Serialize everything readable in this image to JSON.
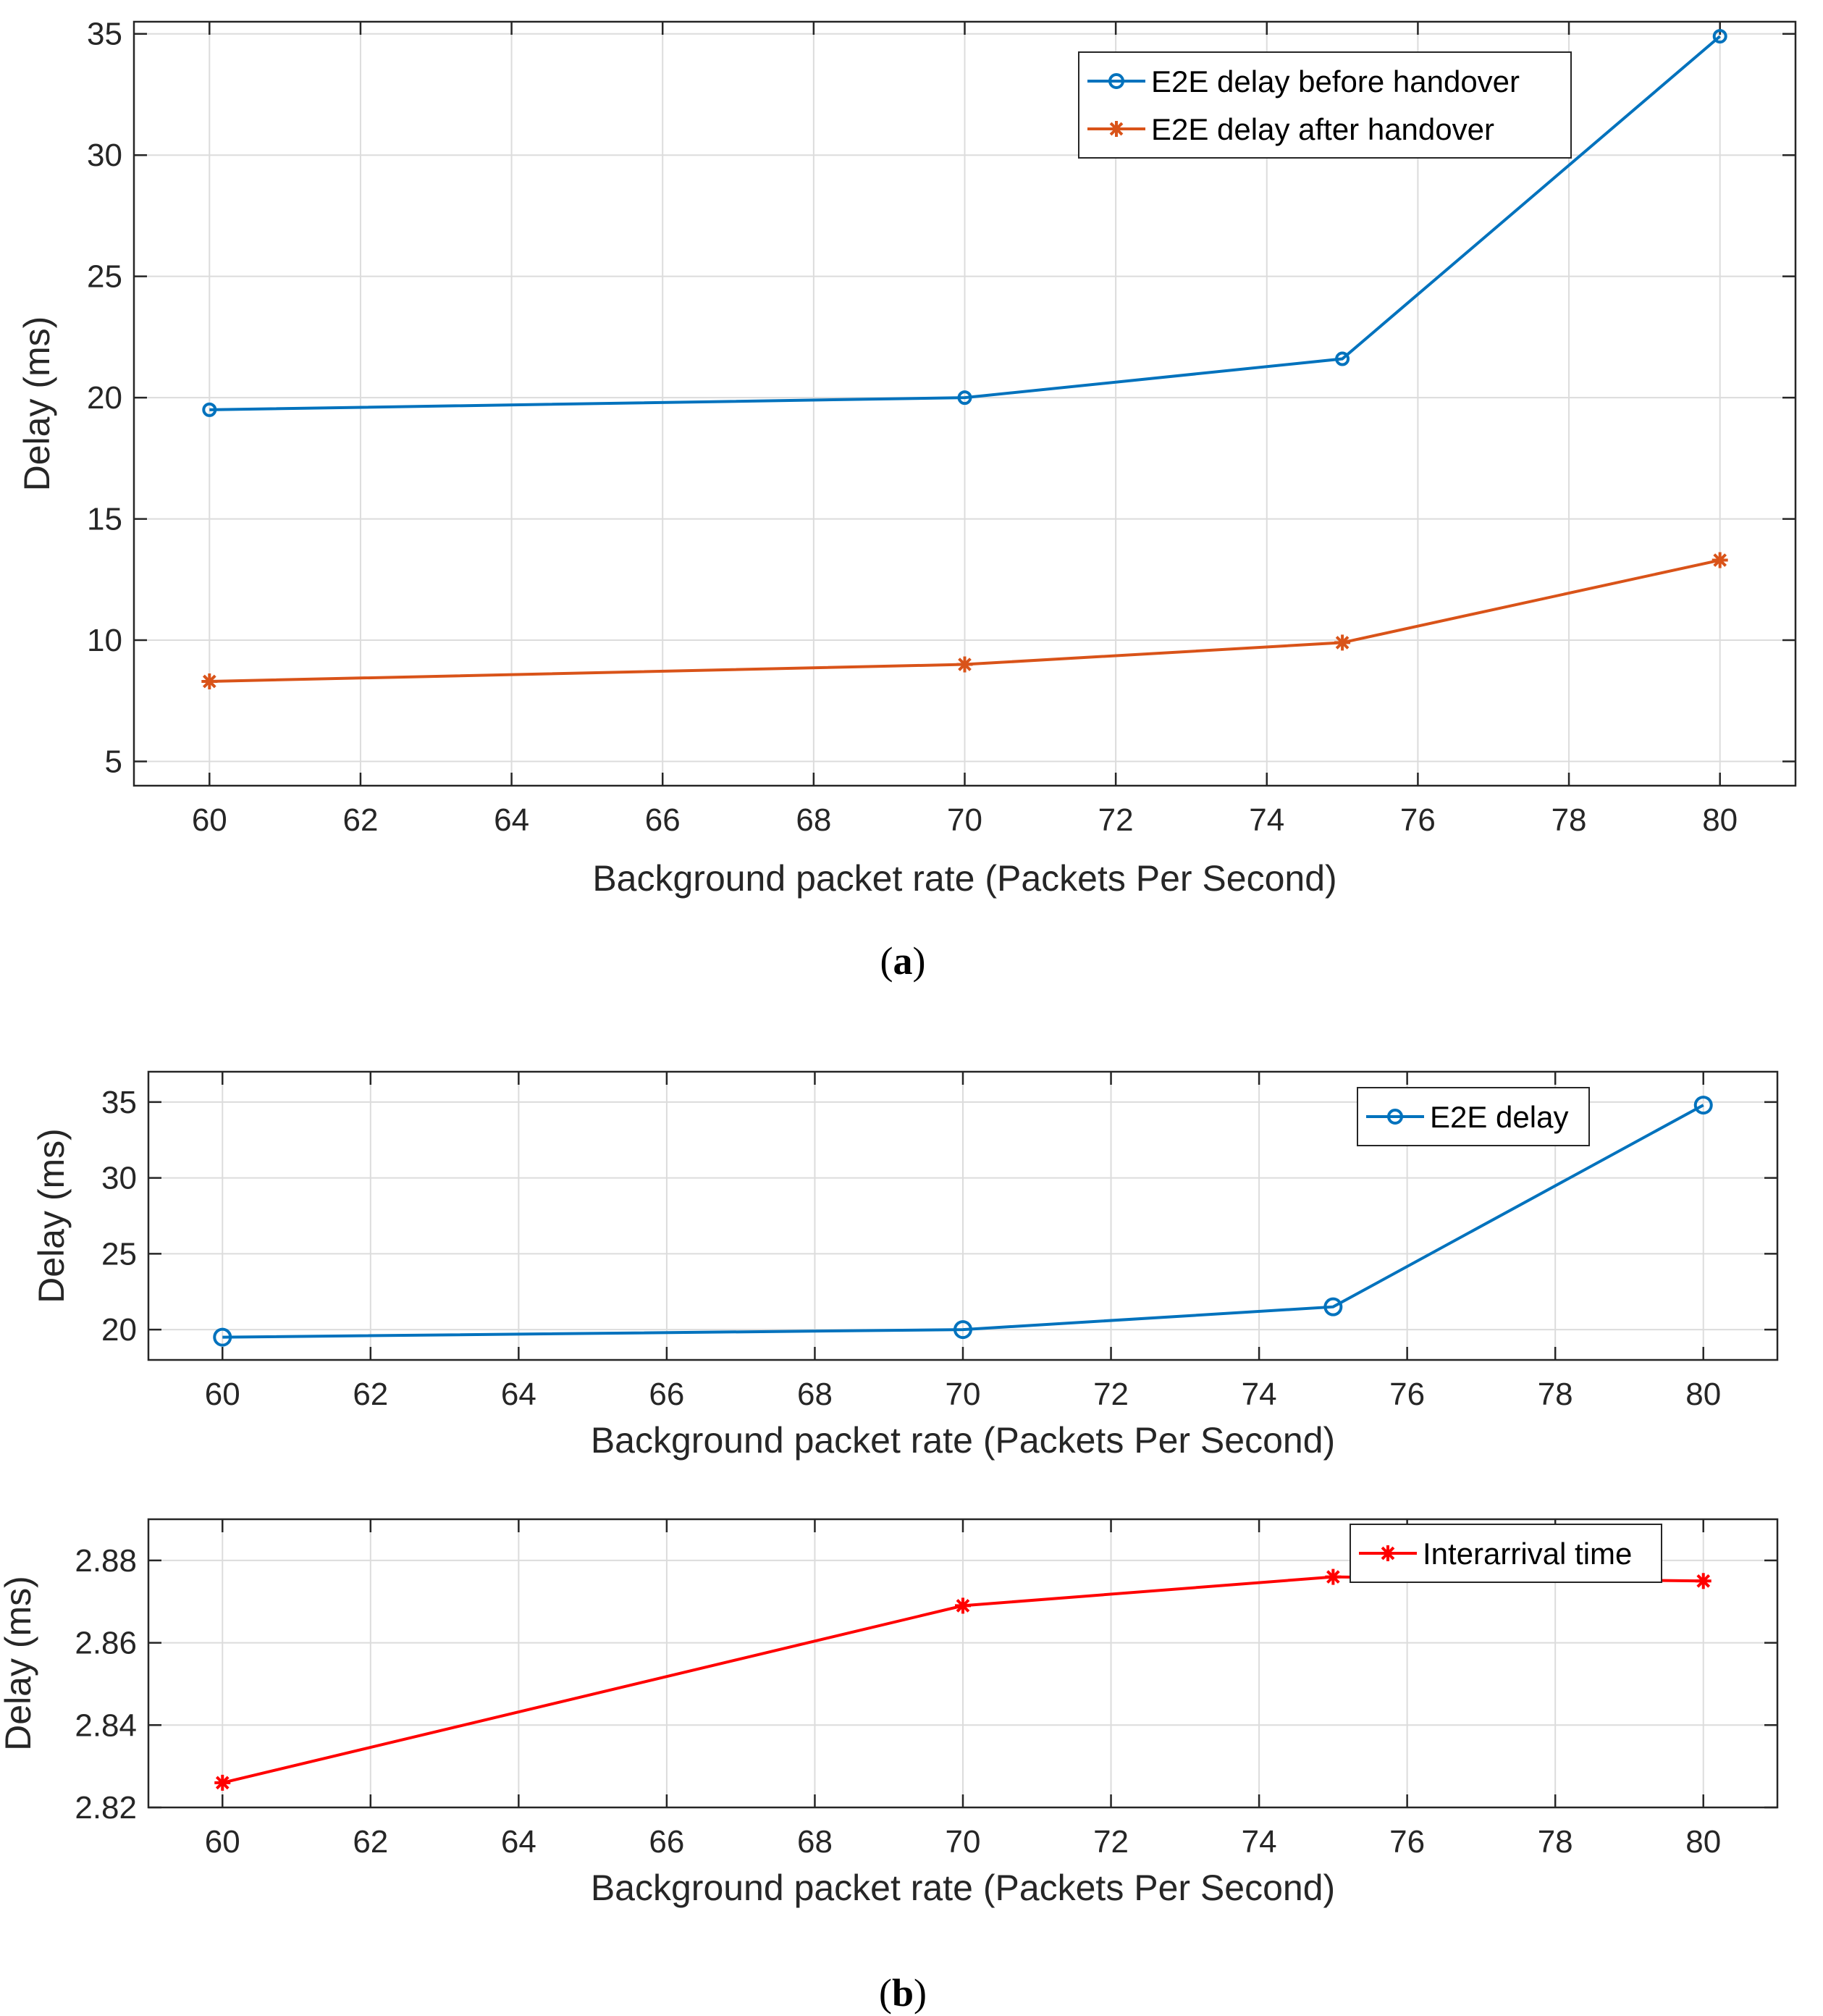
{
  "captions": {
    "a": "a",
    "b": "b"
  },
  "chart_data": [
    {
      "id": "a",
      "type": "line",
      "xlabel": "Background packet rate (Packets Per Second)",
      "ylabel": "Delay (ms)",
      "xlim": [
        59,
        81
      ],
      "ylim": [
        4,
        35.5
      ],
      "xticks": [
        60,
        62,
        64,
        66,
        68,
        70,
        72,
        74,
        76,
        78,
        80
      ],
      "yticks": [
        5,
        10,
        15,
        20,
        25,
        30,
        35
      ],
      "grid": true,
      "legend_position": "top-right",
      "series": [
        {
          "name": "E2E delay before handover",
          "color": "#0072BD",
          "marker": "circle",
          "x": [
            60,
            70,
            75,
            80
          ],
          "y": [
            19.5,
            20.0,
            21.6,
            34.9
          ]
        },
        {
          "name": "E2E delay after handover",
          "color": "#D95319",
          "marker": "asterisk",
          "x": [
            60,
            70,
            75,
            80
          ],
          "y": [
            8.3,
            9.0,
            9.9,
            13.3
          ]
        }
      ]
    },
    {
      "id": "b1",
      "type": "line",
      "xlabel": "Background packet rate (Packets Per Second)",
      "ylabel": "Delay (ms)",
      "xlim": [
        59,
        81
      ],
      "ylim": [
        18,
        37
      ],
      "xticks": [
        60,
        62,
        64,
        66,
        68,
        70,
        72,
        74,
        76,
        78,
        80
      ],
      "yticks": [
        20,
        25,
        30,
        35
      ],
      "grid": true,
      "legend_position": "top-right",
      "series": [
        {
          "name": "E2E delay",
          "color": "#0072BD",
          "marker": "circle",
          "x": [
            60,
            70,
            75,
            80
          ],
          "y": [
            19.5,
            20.0,
            21.5,
            34.8
          ]
        }
      ]
    },
    {
      "id": "b2",
      "type": "line",
      "xlabel": "Background packet rate (Packets Per Second)",
      "ylabel": "Delay (ms)",
      "xlim": [
        59,
        81
      ],
      "ylim": [
        2.82,
        2.89
      ],
      "xticks": [
        60,
        62,
        64,
        66,
        68,
        70,
        72,
        74,
        76,
        78,
        80
      ],
      "yticks": [
        2.82,
        2.84,
        2.86,
        2.88
      ],
      "ytick_labels": [
        "2.82",
        "2.84",
        "2.86",
        "2.88"
      ],
      "grid": true,
      "legend_position": "top-right",
      "series": [
        {
          "name": "Interarrival time",
          "color": "#FF0000",
          "marker": "asterisk",
          "x": [
            60,
            70,
            75,
            80
          ],
          "y": [
            2.826,
            2.869,
            2.876,
            2.875
          ]
        }
      ]
    }
  ]
}
